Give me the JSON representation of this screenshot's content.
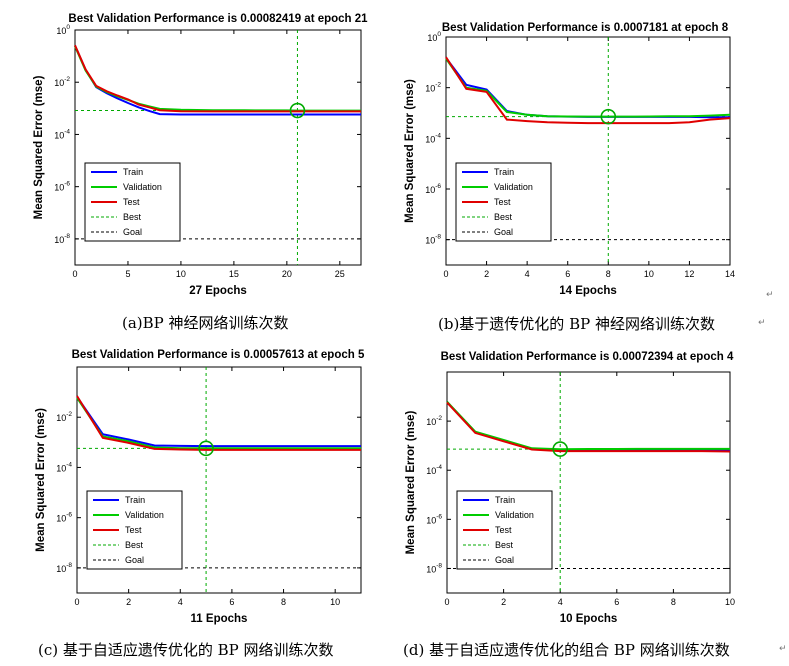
{
  "chart_data": [
    {
      "type": "line",
      "title": "Best Validation Performance is 0.00082419 at epoch 21",
      "xlabel": "27 Epochs",
      "ylabel": "Mean Squared Error  (mse)",
      "y_scale": "log",
      "xlim": [
        0,
        27
      ],
      "ylim": [
        1e-09,
        1
      ],
      "x_ticks": [
        0,
        5,
        10,
        15,
        20,
        25
      ],
      "y_tick_values": [
        1,
        0.01,
        0.0001,
        1e-06,
        1e-08
      ],
      "y_tick_labels": [
        "10^0",
        "10^-2",
        "10^-4",
        "10^-6",
        "10^-8"
      ],
      "legend": {
        "position": "lower-left",
        "entries": [
          "Train",
          "Validation",
          "Test",
          "Best",
          "Goal"
        ]
      },
      "best": {
        "epoch": 21,
        "value": 0.00082419
      },
      "goal": 1e-08,
      "series": [
        {
          "name": "Train",
          "color": "#0000ff",
          "style": "solid",
          "x": [
            0,
            1,
            2,
            3,
            4,
            5,
            6,
            7,
            8,
            10,
            13,
            16,
            20,
            21,
            24,
            27
          ],
          "y": [
            0.25,
            0.03,
            0.0065,
            0.0038,
            0.0024,
            0.0016,
            0.0011,
            0.0008,
            0.0006,
            0.00058,
            0.00058,
            0.00058,
            0.00058,
            0.00058,
            0.00058,
            0.00058
          ]
        },
        {
          "name": "Validation",
          "color": "#00cc00",
          "style": "solid",
          "x": [
            0,
            1,
            2,
            3,
            4,
            5,
            6,
            7,
            8,
            10,
            13,
            16,
            20,
            21,
            24,
            27
          ],
          "y": [
            0.24,
            0.028,
            0.0068,
            0.0042,
            0.0029,
            0.0021,
            0.0015,
            0.0012,
            0.00095,
            0.00088,
            0.00085,
            0.00084,
            0.00083,
            0.00082,
            0.00082,
            0.00082
          ]
        },
        {
          "name": "Test",
          "color": "#e00000",
          "style": "solid",
          "x": [
            0,
            1,
            2,
            3,
            4,
            5,
            6,
            7,
            8,
            10,
            13,
            16,
            20,
            21,
            24,
            27
          ],
          "y": [
            0.26,
            0.031,
            0.0072,
            0.0045,
            0.0031,
            0.0022,
            0.0014,
            0.0011,
            0.00085,
            0.00078,
            0.00076,
            0.00076,
            0.00076,
            0.00076,
            0.00076,
            0.00076
          ]
        }
      ]
    },
    {
      "type": "line",
      "title": "Best Validation Performance is 0.0007181 at epoch 8",
      "xlabel": "14 Epochs",
      "ylabel": "Mean Squared Error  (mse)",
      "y_scale": "log",
      "xlim": [
        0,
        14
      ],
      "ylim": [
        1e-09,
        1
      ],
      "x_ticks": [
        0,
        2,
        4,
        6,
        8,
        10,
        12,
        14
      ],
      "y_tick_values": [
        1,
        0.01,
        0.0001,
        1e-06,
        1e-08
      ],
      "y_tick_labels": [
        "10^0",
        "10^-2",
        "10^-4",
        "10^-6",
        "10^-8"
      ],
      "legend": {
        "position": "lower-left",
        "entries": [
          "Train",
          "Validation",
          "Test",
          "Best",
          "Goal"
        ]
      },
      "best": {
        "epoch": 8,
        "value": 0.0007181
      },
      "goal": 1e-08,
      "series": [
        {
          "name": "Train",
          "color": "#0000ff",
          "style": "solid",
          "x": [
            0,
            1,
            2,
            3,
            4,
            5,
            6,
            7,
            8,
            9,
            10,
            11,
            12,
            13,
            14
          ],
          "y": [
            0.15,
            0.013,
            0.0085,
            0.0012,
            0.00085,
            0.00075,
            0.00072,
            0.0007,
            0.0007,
            0.0007,
            0.0007,
            0.0007,
            0.0007,
            0.00068,
            0.00068
          ]
        },
        {
          "name": "Validation",
          "color": "#00cc00",
          "style": "solid",
          "x": [
            0,
            1,
            2,
            3,
            4,
            5,
            6,
            7,
            8,
            9,
            10,
            11,
            12,
            13,
            14
          ],
          "y": [
            0.14,
            0.01,
            0.0075,
            0.0011,
            0.00085,
            0.00074,
            0.00073,
            0.00072,
            0.00072,
            0.00072,
            0.00073,
            0.00074,
            0.00075,
            0.00079,
            0.00085
          ]
        },
        {
          "name": "Test",
          "color": "#e00000",
          "style": "solid",
          "x": [
            0,
            1,
            2,
            3,
            4,
            5,
            6,
            7,
            8,
            9,
            10,
            11,
            12,
            13,
            14
          ],
          "y": [
            0.16,
            0.009,
            0.0068,
            0.00055,
            0.00048,
            0.00043,
            0.00041,
            0.0004,
            0.0004,
            0.0004,
            0.0004,
            0.0004,
            0.00043,
            0.00055,
            0.00063
          ]
        }
      ]
    },
    {
      "type": "line",
      "title": "Best Validation Performance is 0.00057613 at epoch 5",
      "xlabel": "11 Epochs",
      "ylabel": "Mean Squared Error  (mse)",
      "y_scale": "log",
      "xlim": [
        0,
        11
      ],
      "ylim": [
        1e-09,
        1
      ],
      "x_ticks": [
        0,
        2,
        4,
        6,
        8,
        10
      ],
      "y_tick_values": [
        0.01,
        0.0001,
        1e-06,
        1e-08
      ],
      "y_tick_labels": [
        "10^-2",
        "10^-4",
        "10^-6",
        "10^-8"
      ],
      "legend": {
        "position": "lower-left",
        "entries": [
          "Train",
          "Validation",
          "Test",
          "Best",
          "Goal"
        ]
      },
      "best": {
        "epoch": 5,
        "value": 0.00057613
      },
      "goal": 1e-08,
      "series": [
        {
          "name": "Train",
          "color": "#0000ff",
          "style": "solid",
          "x": [
            0,
            1,
            2,
            3,
            4,
            5,
            6,
            7,
            8,
            9,
            10,
            11
          ],
          "y": [
            0.065,
            0.0021,
            0.0013,
            0.00075,
            0.00072,
            0.00071,
            0.00071,
            0.00071,
            0.00071,
            0.00071,
            0.00071,
            0.00071
          ]
        },
        {
          "name": "Validation",
          "color": "#00cc00",
          "style": "solid",
          "x": [
            0,
            1,
            2,
            3,
            4,
            5,
            6,
            7,
            8,
            9,
            10,
            11
          ],
          "y": [
            0.06,
            0.0017,
            0.0011,
            0.00062,
            0.00058,
            0.00058,
            0.00058,
            0.00058,
            0.00058,
            0.00058,
            0.00058,
            0.00058
          ]
        },
        {
          "name": "Test",
          "color": "#e00000",
          "style": "solid",
          "x": [
            0,
            1,
            2,
            3,
            4,
            5,
            6,
            7,
            8,
            9,
            10,
            11
          ],
          "y": [
            0.07,
            0.0015,
            0.00095,
            0.00055,
            0.00052,
            0.0005,
            0.0005,
            0.0005,
            0.0005,
            0.0005,
            0.0005,
            0.0005
          ]
        }
      ]
    },
    {
      "type": "line",
      "title": "Best Validation Performance is 0.00072394 at epoch 4",
      "xlabel": "10 Epochs",
      "ylabel": "Mean Squared Error  (mse)",
      "y_scale": "log",
      "xlim": [
        0,
        10
      ],
      "ylim": [
        1e-09,
        1
      ],
      "x_ticks": [
        0,
        2,
        4,
        6,
        8,
        10
      ],
      "y_tick_values": [
        0.01,
        0.0001,
        1e-06,
        1e-08
      ],
      "y_tick_labels": [
        "10^-2",
        "10^-4",
        "10^-6",
        "10^-8"
      ],
      "legend": {
        "position": "lower-left",
        "entries": [
          "Train",
          "Validation",
          "Test",
          "Best",
          "Goal"
        ]
      },
      "best": {
        "epoch": 4,
        "value": 0.00072394
      },
      "goal": 1e-08,
      "series": [
        {
          "name": "Train",
          "color": "#0000ff",
          "style": "solid",
          "x": [
            0,
            1,
            2,
            3,
            4,
            5,
            6,
            7,
            8,
            9,
            10
          ],
          "y": [
            0.06,
            0.0035,
            0.0016,
            0.00075,
            0.00068,
            0.00068,
            0.00068,
            0.00068,
            0.00068,
            0.00068,
            0.00068
          ]
        },
        {
          "name": "Validation",
          "color": "#00cc00",
          "style": "solid",
          "x": [
            0,
            1,
            2,
            3,
            4,
            5,
            6,
            7,
            8,
            9,
            10
          ],
          "y": [
            0.062,
            0.0037,
            0.0017,
            0.00078,
            0.00072,
            0.00073,
            0.00073,
            0.00074,
            0.00074,
            0.00074,
            0.00074
          ]
        },
        {
          "name": "Test",
          "color": "#e00000",
          "style": "solid",
          "x": [
            0,
            1,
            2,
            3,
            4,
            5,
            6,
            7,
            8,
            9,
            10
          ],
          "y": [
            0.058,
            0.0033,
            0.0015,
            0.0007,
            0.0006,
            0.0006,
            0.0006,
            0.0006,
            0.0006,
            0.0006,
            0.00058
          ]
        }
      ]
    }
  ],
  "captions": [
    "(a)BP 神经网络训练次数",
    "(b)基于遗传优化的 BP 神经网络训练次数",
    "(c) 基于自适应遗传优化的 BP 网络训练次数",
    "(d) 基于自适应遗传优化的组合 BP 网络训练次数"
  ],
  "return_mark": "↵"
}
